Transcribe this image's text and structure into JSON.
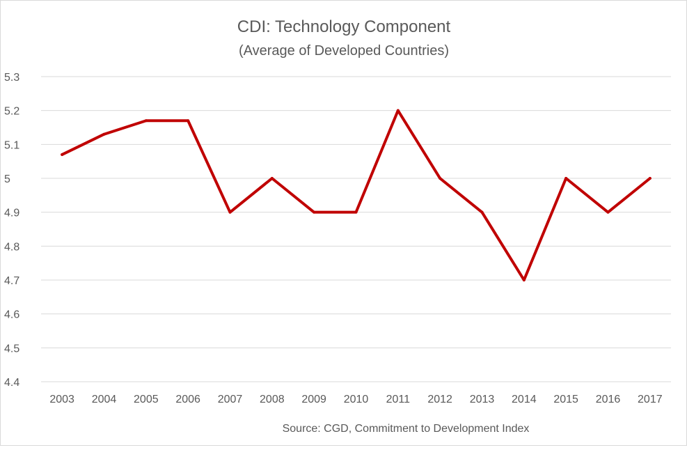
{
  "chart_data": {
    "type": "line",
    "title": "CDI:  Technology Component",
    "subtitle": "(Average of Developed Countries)",
    "source": "Source:  CGD, Commitment to Development Index",
    "categories": [
      "2003",
      "2004",
      "2005",
      "2006",
      "2007",
      "2008",
      "2009",
      "2010",
      "2011",
      "2012",
      "2013",
      "2014",
      "2015",
      "2016",
      "2017"
    ],
    "series": [
      {
        "values": [
          5.07,
          5.13,
          5.17,
          5.17,
          4.9,
          5.0,
          4.9,
          4.9,
          5.2,
          5.0,
          4.9,
          4.7,
          5.0,
          4.9,
          5.0
        ],
        "color": "#c00000"
      }
    ],
    "yticks": [
      "4.4",
      "4.5",
      "4.6",
      "4.7",
      "4.8",
      "4.9",
      "5",
      "5.1",
      "5.2",
      "5.3"
    ],
    "ylim": [
      4.4,
      5.3
    ],
    "grid": true,
    "legend": "none",
    "gridColor": "#d9d9d9"
  }
}
